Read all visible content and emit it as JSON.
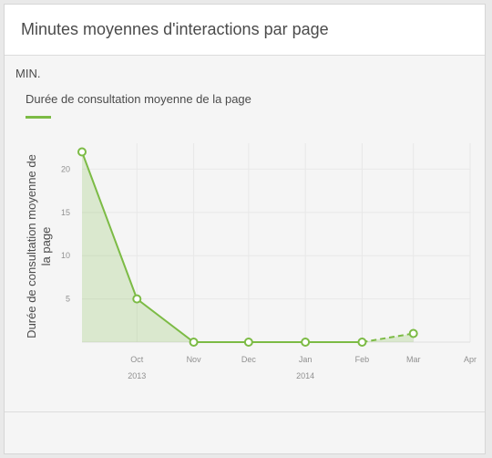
{
  "card": {
    "title": "Minutes moyennes d'interactions par page",
    "unit_label": "MIN."
  },
  "chart_data": {
    "type": "line",
    "series": [
      {
        "name": "Durée de consultation moyenne de la page",
        "color": "#7cbb45",
        "x": [
          "2013-09-01",
          "2013-10-01",
          "2013-11-01",
          "2013-12-01",
          "2014-01-01",
          "2014-02-01",
          "2014-03-01"
        ],
        "values": [
          22,
          5,
          0,
          0,
          0,
          0,
          1
        ],
        "dashed_last_segment": true
      }
    ],
    "ylabel": "Durée de consultation moyenne de la page",
    "ylim": [
      0,
      23
    ],
    "yticks": [
      5,
      10,
      15,
      20
    ],
    "xticks": [
      {
        "label": "Oct",
        "sub": "2013",
        "date": "2013-10-01"
      },
      {
        "label": "Nov",
        "sub": "",
        "date": "2013-11-01"
      },
      {
        "label": "Dec",
        "sub": "",
        "date": "2013-12-01"
      },
      {
        "label": "Jan",
        "sub": "2014",
        "date": "2014-01-01"
      },
      {
        "label": "Feb",
        "sub": "",
        "date": "2014-02-01"
      },
      {
        "label": "Mar",
        "sub": "",
        "date": "2014-03-01"
      },
      {
        "label": "Apr",
        "sub": "",
        "date": "2014-04-01"
      }
    ],
    "grid": true,
    "area_fill": true,
    "legend_position": "top-left"
  }
}
